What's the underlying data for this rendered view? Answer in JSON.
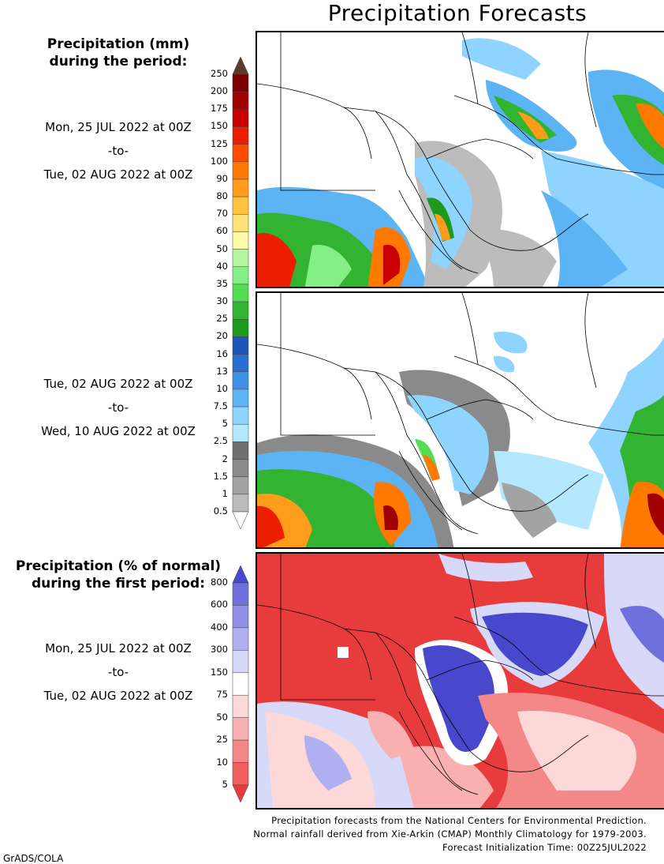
{
  "title": "Precipitation Forecasts",
  "legend_top": {
    "heading_line1": "Precipitation (mm)",
    "heading_line2": "during the period:",
    "colors": [
      "#ffffff",
      "#bcbcbc",
      "#a3a3a3",
      "#8a8a8a",
      "#707070",
      "#b3e8ff",
      "#8fd4ff",
      "#5db4f5",
      "#3d92e6",
      "#2a6ed2",
      "#1f54b8",
      "#1d9a1d",
      "#32b432",
      "#55dc55",
      "#86ee86",
      "#b6f6a0",
      "#fffaa8",
      "#ffe17a",
      "#ffc43d",
      "#ff9c1a",
      "#ff7800",
      "#ff4a00",
      "#eb1e00",
      "#c80000",
      "#a00000",
      "#7a0000",
      "#5a3a2a"
    ],
    "labels": [
      "0.5",
      "1",
      "1.5",
      "2",
      "2.5",
      "5",
      "7.5",
      "10",
      "13",
      "16",
      "20",
      "25",
      "30",
      "35",
      "40",
      "50",
      "60",
      "70",
      "80",
      "90",
      "100",
      "125",
      "150",
      "175",
      "200",
      "250"
    ]
  },
  "legend_bottom": {
    "heading_line1": "Precipitation (% of normal)",
    "heading_line2": "during the first period:",
    "colors": [
      "#e83c3c",
      "#f06060",
      "#f48888",
      "#f8b0b0",
      "#fcd8d8",
      "#ffffff",
      "#d8d8f8",
      "#b0b0f0",
      "#9090e8",
      "#7070dc",
      "#4848cc"
    ],
    "labels": [
      "5",
      "10",
      "25",
      "50",
      "75",
      "150",
      "300",
      "400",
      "600",
      "800"
    ]
  },
  "periods": [
    {
      "from": "Mon, 25 JUL 2022 at 00Z",
      "sep": "-to-",
      "to": "Tue, 02 AUG 2022 at 00Z"
    },
    {
      "from": "Tue, 02 AUG 2022 at 00Z",
      "sep": "-to-",
      "to": "Wed, 10 AUG 2022 at 00Z"
    },
    {
      "from": "Mon, 25 JUL 2022 at 00Z",
      "sep": "-to-",
      "to": "Tue, 02 AUG 2022 at 00Z"
    }
  ],
  "footer": {
    "line1": "Precipitation forecasts from the National Centers for Environmental Prediction.",
    "line2": "Normal rainfall derived from Xie-Arkin (CMAP) Monthly Climatology for 1979-2003.",
    "line3": "Forecast Initialization Time: 00Z25JUL2022"
  },
  "credit": "GrADS/COLA"
}
